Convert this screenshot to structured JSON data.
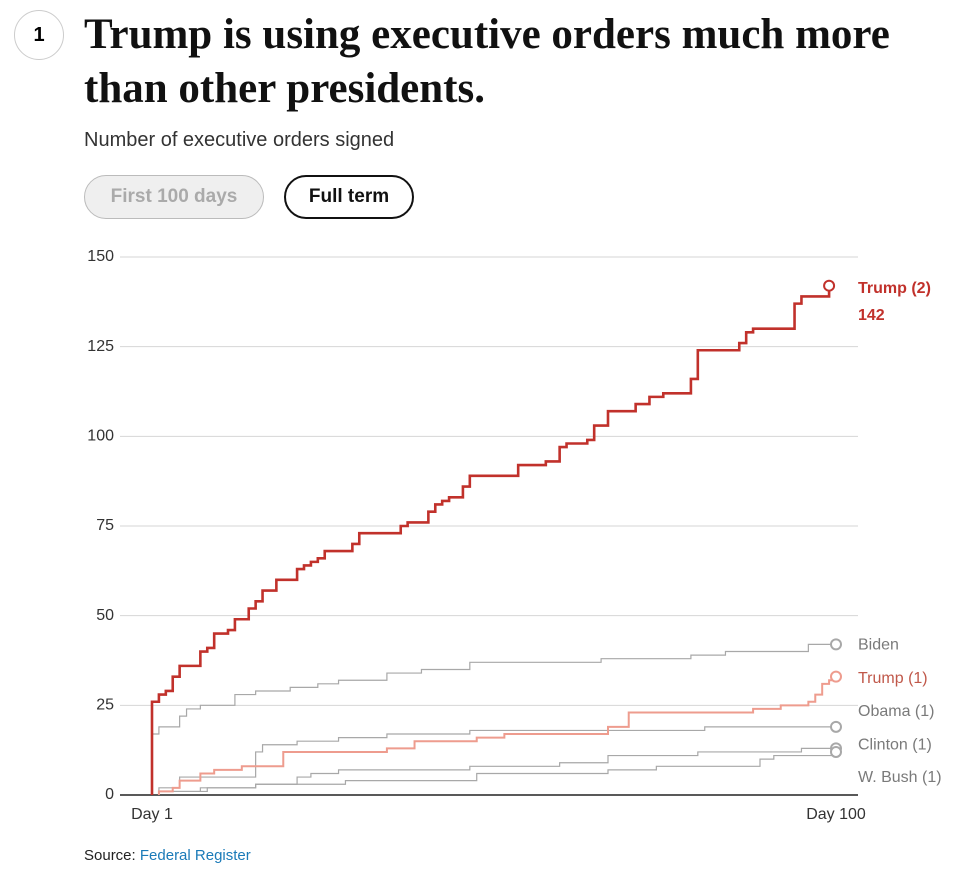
{
  "header": {
    "badge": "1",
    "title": "Trump is using executive orders much more than other presidents.",
    "subtitle": "Number of executive orders signed"
  },
  "buttons": [
    {
      "label": "First 100 days",
      "selected": false
    },
    {
      "label": "Full term",
      "selected": true
    }
  ],
  "chart_data": {
    "type": "line",
    "step": true,
    "xlim": [
      1,
      100
    ],
    "xticks": [
      {
        "value": 1,
        "label": "Day 1"
      },
      {
        "value": 100,
        "label": "Day 100"
      }
    ],
    "ylim": [
      0,
      150
    ],
    "yticks": [
      0,
      25,
      50,
      75,
      100,
      125,
      150
    ],
    "grid": true,
    "series": [
      {
        "name": "Biden",
        "color": "#a8a8a8",
        "x": [
          1,
          2,
          5,
          6,
          8,
          13,
          16,
          21,
          25,
          28,
          35,
          40,
          47,
          66,
          79,
          84,
          96,
          100
        ],
        "values": [
          17,
          19,
          22,
          24,
          25,
          28,
          29,
          30,
          31,
          32,
          34,
          35,
          37,
          38,
          39,
          40,
          42,
          42
        ]
      },
      {
        "name": "Obama (1)",
        "color": "#a8a8a8",
        "x": [
          2,
          5,
          16,
          17,
          22,
          28,
          35,
          47,
          81,
          100
        ],
        "values": [
          2,
          5,
          12,
          14,
          15,
          16,
          17,
          18,
          19,
          19
        ]
      },
      {
        "name": "Clinton (1)",
        "color": "#a8a8a8",
        "x": [
          2,
          8,
          16,
          22,
          24,
          28,
          47,
          60,
          67,
          80,
          95,
          100
        ],
        "values": [
          1,
          2,
          3,
          5,
          6,
          7,
          8,
          9,
          11,
          12,
          13,
          13
        ]
      },
      {
        "name": "W. Bush (1)",
        "color": "#a8a8a8",
        "x": [
          2,
          9,
          16,
          29,
          48,
          67,
          74,
          89,
          91,
          100
        ],
        "values": [
          1,
          2,
          3,
          4,
          6,
          7,
          8,
          10,
          11,
          12
        ]
      },
      {
        "name": "Trump (1)",
        "color": "#ee9c8e",
        "x": [
          2,
          4,
          5,
          8,
          10,
          14,
          20,
          35,
          39,
          48,
          52,
          67,
          70,
          88,
          92,
          96,
          97,
          98,
          99,
          100
        ],
        "values": [
          1,
          2,
          4,
          6,
          7,
          8,
          12,
          13,
          15,
          16,
          17,
          19,
          23,
          24,
          25,
          26,
          28,
          31,
          32,
          33
        ]
      },
      {
        "name": "Trump (2)",
        "color": "#c1312b",
        "x": [
          1,
          2,
          3,
          4,
          5,
          8,
          9,
          10,
          12,
          13,
          15,
          16,
          17,
          19,
          22,
          23,
          24,
          25,
          26,
          30,
          31,
          37,
          38,
          41,
          42,
          43,
          44,
          46,
          47,
          54,
          58,
          60,
          61,
          64,
          65,
          67,
          71,
          73,
          75,
          79,
          80,
          86,
          87,
          88,
          94,
          95,
          99
        ],
        "values": [
          26,
          28,
          29,
          33,
          36,
          40,
          41,
          45,
          46,
          49,
          52,
          54,
          57,
          60,
          63,
          64,
          65,
          66,
          68,
          70,
          73,
          75,
          76,
          79,
          81,
          82,
          83,
          86,
          89,
          92,
          93,
          97,
          98,
          99,
          103,
          107,
          109,
          111,
          112,
          116,
          124,
          126,
          129,
          130,
          137,
          139,
          142
        ]
      }
    ]
  },
  "source": {
    "label": "Source:",
    "link": "Federal Register"
  }
}
